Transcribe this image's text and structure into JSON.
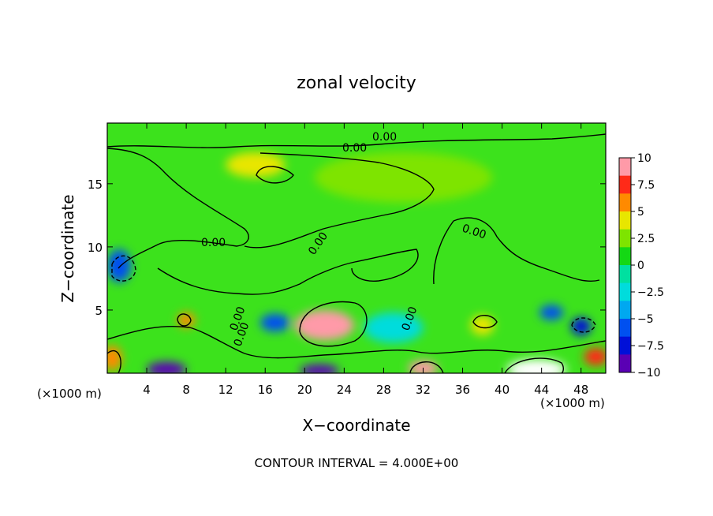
{
  "chart_data": {
    "type": "heatmap",
    "title": "zonal velocity",
    "xlabel": "X−coordinate",
    "ylabel": "Z−coordinate",
    "x_unit_left": "(×1000 m)",
    "x_unit_right": "(×1000 m)",
    "footer": "CONTOUR INTERVAL = 4.000E+00",
    "xlim": [
      0,
      50.5
    ],
    "ylim": [
      0,
      19.8
    ],
    "x_ticks": [
      4,
      8,
      12,
      16,
      20,
      24,
      28,
      32,
      36,
      40,
      44,
      48
    ],
    "x_tick_labels": [
      "4",
      "8",
      "12",
      "16",
      "20",
      "24",
      "28",
      "32",
      "36",
      "40",
      "44",
      "48"
    ],
    "y_ticks": [
      5,
      10,
      15
    ],
    "y_tick_labels": [
      "5",
      "10",
      "15"
    ],
    "colorbar": {
      "range": [
        -10,
        10
      ],
      "ticks": [
        10,
        7.5,
        5,
        2.5,
        0,
        -2.5,
        -5,
        -7.5,
        -10
      ],
      "tick_labels": [
        "10",
        "7.5",
        "5",
        "2.5",
        "0",
        "−2.5",
        "−5",
        "−7.5",
        "−10"
      ],
      "colors": [
        "#ff9aa8",
        "#ff2a18",
        "#ff8a00",
        "#e8e600",
        "#7ee400",
        "#14d814",
        "#00e0a0",
        "#00dcdc",
        "#00a8f0",
        "#0050f0",
        "#0010d8",
        "#5a00b4"
      ]
    },
    "contour_labels": [
      "0.00",
      "0.00",
      "0.00",
      "0.00",
      "0.00",
      "0.00",
      "0.00",
      "0.00"
    ],
    "contour_interval": 4.0,
    "background_value": 0.5,
    "features": [
      {
        "name": "upper-right lobe",
        "x": 30,
        "z": 15.5,
        "value": 2.5,
        "sx": 9,
        "sz": 2
      },
      {
        "name": "upper-left warm patch",
        "x": 15,
        "z": 16.5,
        "value": 4,
        "sx": 3,
        "sz": 1
      },
      {
        "name": "mid positive",
        "x": 22,
        "z": 3.8,
        "value": 9,
        "sx": 3,
        "sz": 1.2
      },
      {
        "name": "bottom white maximum",
        "x": 43.5,
        "z": 0.3,
        "value": 13,
        "sx": 3,
        "sz": 0.8
      },
      {
        "name": "bottom left positive",
        "x": 0.5,
        "z": 1.2,
        "value": 6,
        "sx": 1,
        "sz": 1
      },
      {
        "name": "bottom red 32",
        "x": 32,
        "z": 0.4,
        "value": 9,
        "sx": 1.5,
        "sz": 0.6
      },
      {
        "name": "right red",
        "x": 49.5,
        "z": 1.3,
        "value": 7,
        "sx": 1.2,
        "sz": 0.7
      },
      {
        "name": "patch 8",
        "x": 8,
        "z": 4.2,
        "value": 6,
        "sx": 0.9,
        "sz": 0.6
      },
      {
        "name": "patch 38",
        "x": 38,
        "z": 3.8,
        "value": 4,
        "sx": 1.2,
        "sz": 0.8
      },
      {
        "name": "left negative",
        "x": 1.2,
        "z": 8.5,
        "value": -5,
        "sx": 1.2,
        "sz": 1.3
      },
      {
        "name": "blue 5-7",
        "x": 6,
        "z": 0.3,
        "value": -9,
        "sx": 2,
        "sz": 0.6
      },
      {
        "name": "blue 21",
        "x": 21.5,
        "z": 0.2,
        "value": -9,
        "sx": 2,
        "sz": 0.5
      },
      {
        "name": "blue 17",
        "x": 17,
        "z": 4,
        "value": -5,
        "sx": 1.5,
        "sz": 0.7
      },
      {
        "name": "blue 45",
        "x": 45,
        "z": 4.8,
        "value": -5,
        "sx": 1.2,
        "sz": 0.6
      },
      {
        "name": "blue 48",
        "x": 48,
        "z": 3.7,
        "value": -8,
        "sx": 1,
        "sz": 0.7
      },
      {
        "name": "cyan low band",
        "x": 29,
        "z": 3.6,
        "value": -3,
        "sx": 3,
        "sz": 1.2
      }
    ]
  }
}
